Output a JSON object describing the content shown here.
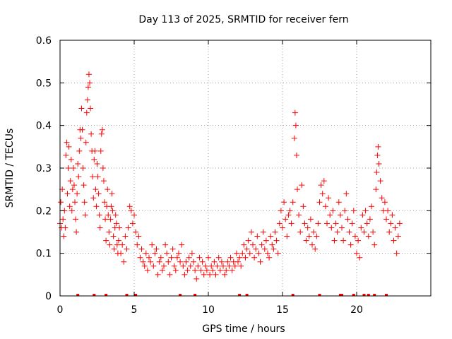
{
  "chart_data": {
    "type": "scatter",
    "title": "Day 113 of 2025, SRMTID for receiver fern",
    "xlabel": "GPS time / hours",
    "ylabel": "SRMTID / TECUs",
    "xlim": [
      0,
      25
    ],
    "ylim": [
      0,
      0.6
    ],
    "xticks": [
      0,
      5,
      10,
      15,
      20
    ],
    "xtick_labels": [
      "0",
      "5",
      "10",
      "15",
      "20"
    ],
    "yticks": [
      0,
      0.1,
      0.2,
      0.3,
      0.4,
      0.5,
      0.6
    ],
    "ytick_labels": [
      "0",
      "0.1",
      "0.2",
      "0.3",
      "0.4",
      "0.5",
      "0.6"
    ],
    "grid": true,
    "marker": "+",
    "color": "#ff0000",
    "series": [
      {
        "name": "SRMTID",
        "points": [
          [
            0.0,
            0.17
          ],
          [
            0.05,
            0.22
          ],
          [
            0.1,
            0.16
          ],
          [
            0.15,
            0.25
          ],
          [
            0.2,
            0.18
          ],
          [
            0.25,
            0.14
          ],
          [
            0.3,
            0.2
          ],
          [
            0.35,
            0.16
          ],
          [
            0.4,
            0.33
          ],
          [
            0.45,
            0.36
          ],
          [
            0.5,
            0.24
          ],
          [
            0.55,
            0.3
          ],
          [
            0.6,
            0.35
          ],
          [
            0.65,
            0.21
          ],
          [
            0.7,
            0.27
          ],
          [
            0.75,
            0.32
          ],
          [
            0.8,
            0.2
          ],
          [
            0.85,
            0.25
          ],
          [
            0.9,
            0.3
          ],
          [
            0.95,
            0.26
          ],
          [
            1.0,
            0.22
          ],
          [
            1.05,
            0.18
          ],
          [
            1.1,
            0.15
          ],
          [
            1.15,
            0.24
          ],
          [
            1.2,
            0.31
          ],
          [
            1.25,
            0.28
          ],
          [
            1.3,
            0.34
          ],
          [
            1.35,
            0.39
          ],
          [
            1.4,
            0.37
          ],
          [
            1.45,
            0.44
          ],
          [
            1.5,
            0.39
          ],
          [
            1.55,
            0.3
          ],
          [
            1.6,
            0.26
          ],
          [
            1.65,
            0.22
          ],
          [
            1.7,
            0.19
          ],
          [
            1.75,
            0.36
          ],
          [
            1.8,
            0.43
          ],
          [
            1.85,
            0.46
          ],
          [
            1.9,
            0.49
          ],
          [
            1.95,
            0.52
          ],
          [
            2.0,
            0.5
          ],
          [
            2.05,
            0.44
          ],
          [
            2.1,
            0.38
          ],
          [
            2.15,
            0.34
          ],
          [
            2.2,
            0.28
          ],
          [
            2.25,
            0.23
          ],
          [
            2.3,
            0.32
          ],
          [
            2.35,
            0.34
          ],
          [
            2.4,
            0.25
          ],
          [
            2.45,
            0.21
          ],
          [
            2.5,
            0.31
          ],
          [
            2.55,
            0.28
          ],
          [
            2.6,
            0.24
          ],
          [
            2.65,
            0.19
          ],
          [
            2.7,
            0.16
          ],
          [
            2.75,
            0.34
          ],
          [
            2.8,
            0.38
          ],
          [
            2.85,
            0.39
          ],
          [
            2.9,
            0.3
          ],
          [
            2.95,
            0.27
          ],
          [
            3.0,
            0.22
          ],
          [
            3.05,
            0.18
          ],
          [
            3.1,
            0.13
          ],
          [
            3.15,
            0.21
          ],
          [
            3.2,
            0.25
          ],
          [
            3.25,
            0.19
          ],
          [
            3.3,
            0.15
          ],
          [
            3.35,
            0.12
          ],
          [
            3.4,
            0.18
          ],
          [
            3.45,
            0.21
          ],
          [
            3.5,
            0.24
          ],
          [
            3.55,
            0.2
          ],
          [
            3.6,
            0.14
          ],
          [
            3.65,
            0.11
          ],
          [
            3.7,
            0.16
          ],
          [
            3.75,
            0.19
          ],
          [
            3.8,
            0.17
          ],
          [
            3.85,
            0.12
          ],
          [
            3.9,
            0.1
          ],
          [
            3.95,
            0.13
          ],
          [
            4.0,
            0.16
          ],
          [
            4.1,
            0.1
          ],
          [
            4.2,
            0.12
          ],
          [
            4.3,
            0.08
          ],
          [
            4.4,
            0.14
          ],
          [
            4.5,
            0.11
          ],
          [
            4.6,
            0.16
          ],
          [
            4.7,
            0.21
          ],
          [
            4.8,
            0.2
          ],
          [
            4.9,
            0.17
          ],
          [
            5.0,
            0.19
          ],
          [
            5.1,
            0.15
          ],
          [
            5.2,
            0.12
          ],
          [
            5.3,
            0.14
          ],
          [
            5.4,
            0.09
          ],
          [
            5.5,
            0.11
          ],
          [
            5.6,
            0.08
          ],
          [
            5.7,
            0.07
          ],
          [
            5.8,
            0.1
          ],
          [
            5.9,
            0.06
          ],
          [
            6.0,
            0.09
          ],
          [
            6.1,
            0.08
          ],
          [
            6.2,
            0.12
          ],
          [
            6.3,
            0.07
          ],
          [
            6.4,
            0.1
          ],
          [
            6.5,
            0.11
          ],
          [
            6.6,
            0.05
          ],
          [
            6.7,
            0.08
          ],
          [
            6.8,
            0.09
          ],
          [
            6.9,
            0.06
          ],
          [
            7.0,
            0.07
          ],
          [
            7.1,
            0.12
          ],
          [
            7.2,
            0.1
          ],
          [
            7.3,
            0.08
          ],
          [
            7.4,
            0.05
          ],
          [
            7.5,
            0.09
          ],
          [
            7.6,
            0.11
          ],
          [
            7.7,
            0.07
          ],
          [
            7.8,
            0.06
          ],
          [
            7.9,
            0.09
          ],
          [
            8.0,
            0.1
          ],
          [
            8.1,
            0.08
          ],
          [
            8.2,
            0.12
          ],
          [
            8.3,
            0.07
          ],
          [
            8.4,
            0.05
          ],
          [
            8.5,
            0.08
          ],
          [
            8.6,
            0.06
          ],
          [
            8.7,
            0.09
          ],
          [
            8.8,
            0.07
          ],
          [
            8.9,
            0.1
          ],
          [
            9.0,
            0.08
          ],
          [
            9.1,
            0.06
          ],
          [
            9.2,
            0.04
          ],
          [
            9.3,
            0.07
          ],
          [
            9.4,
            0.09
          ],
          [
            9.5,
            0.06
          ],
          [
            9.6,
            0.08
          ],
          [
            9.7,
            0.05
          ],
          [
            9.8,
            0.07
          ],
          [
            9.9,
            0.06
          ],
          [
            10.0,
            0.09
          ],
          [
            10.1,
            0.05
          ],
          [
            10.2,
            0.07
          ],
          [
            10.3,
            0.06
          ],
          [
            10.4,
            0.08
          ],
          [
            10.5,
            0.05
          ],
          [
            10.6,
            0.07
          ],
          [
            10.7,
            0.09
          ],
          [
            10.8,
            0.06
          ],
          [
            10.9,
            0.08
          ],
          [
            11.0,
            0.07
          ],
          [
            11.1,
            0.05
          ],
          [
            11.2,
            0.06
          ],
          [
            11.3,
            0.08
          ],
          [
            11.4,
            0.07
          ],
          [
            11.5,
            0.09
          ],
          [
            11.6,
            0.06
          ],
          [
            11.7,
            0.08
          ],
          [
            11.8,
            0.07
          ],
          [
            11.9,
            0.1
          ],
          [
            12.0,
            0.08
          ],
          [
            12.1,
            0.09
          ],
          [
            12.2,
            0.07
          ],
          [
            12.3,
            0.1
          ],
          [
            12.4,
            0.12
          ],
          [
            12.5,
            0.09
          ],
          [
            12.6,
            0.11
          ],
          [
            12.7,
            0.13
          ],
          [
            12.8,
            0.1
          ],
          [
            12.9,
            0.15
          ],
          [
            13.0,
            0.12
          ],
          [
            13.1,
            0.09
          ],
          [
            13.2,
            0.11
          ],
          [
            13.3,
            0.14
          ],
          [
            13.4,
            0.1
          ],
          [
            13.5,
            0.08
          ],
          [
            13.6,
            0.12
          ],
          [
            13.7,
            0.15
          ],
          [
            13.8,
            0.11
          ],
          [
            13.9,
            0.13
          ],
          [
            14.0,
            0.1
          ],
          [
            14.1,
            0.09
          ],
          [
            14.2,
            0.14
          ],
          [
            14.3,
            0.12
          ],
          [
            14.4,
            0.11
          ],
          [
            14.5,
            0.15
          ],
          [
            14.6,
            0.13
          ],
          [
            14.7,
            0.1
          ],
          [
            14.8,
            0.17
          ],
          [
            14.9,
            0.2
          ],
          [
            15.0,
            0.16
          ],
          [
            15.1,
            0.22
          ],
          [
            15.2,
            0.18
          ],
          [
            15.3,
            0.14
          ],
          [
            15.4,
            0.19
          ],
          [
            15.5,
            0.2
          ],
          [
            15.6,
            0.17
          ],
          [
            15.7,
            0.22
          ],
          [
            15.8,
            0.37
          ],
          [
            15.85,
            0.43
          ],
          [
            15.9,
            0.4
          ],
          [
            15.95,
            0.33
          ],
          [
            16.0,
            0.25
          ],
          [
            16.1,
            0.19
          ],
          [
            16.2,
            0.15
          ],
          [
            16.3,
            0.26
          ],
          [
            16.4,
            0.21
          ],
          [
            16.5,
            0.17
          ],
          [
            16.6,
            0.13
          ],
          [
            16.7,
            0.16
          ],
          [
            16.8,
            0.14
          ],
          [
            16.9,
            0.18
          ],
          [
            17.0,
            0.12
          ],
          [
            17.1,
            0.15
          ],
          [
            17.2,
            0.11
          ],
          [
            17.3,
            0.14
          ],
          [
            17.4,
            0.17
          ],
          [
            17.5,
            0.22
          ],
          [
            17.6,
            0.26
          ],
          [
            17.7,
            0.24
          ],
          [
            17.8,
            0.27
          ],
          [
            17.9,
            0.21
          ],
          [
            18.0,
            0.17
          ],
          [
            18.1,
            0.23
          ],
          [
            18.2,
            0.19
          ],
          [
            18.3,
            0.16
          ],
          [
            18.4,
            0.2
          ],
          [
            18.5,
            0.13
          ],
          [
            18.6,
            0.17
          ],
          [
            18.7,
            0.15
          ],
          [
            18.8,
            0.22
          ],
          [
            18.9,
            0.19
          ],
          [
            19.0,
            0.16
          ],
          [
            19.1,
            0.13
          ],
          [
            19.2,
            0.2
          ],
          [
            19.3,
            0.24
          ],
          [
            19.4,
            0.18
          ],
          [
            19.5,
            0.15
          ],
          [
            19.6,
            0.12
          ],
          [
            19.7,
            0.17
          ],
          [
            19.8,
            0.2
          ],
          [
            19.9,
            0.14
          ],
          [
            20.0,
            0.1
          ],
          [
            20.1,
            0.13
          ],
          [
            20.2,
            0.09
          ],
          [
            20.3,
            0.16
          ],
          [
            20.4,
            0.19
          ],
          [
            20.5,
            0.15
          ],
          [
            20.6,
            0.2
          ],
          [
            20.7,
            0.17
          ],
          [
            20.8,
            0.14
          ],
          [
            20.9,
            0.18
          ],
          [
            21.0,
            0.21
          ],
          [
            21.1,
            0.15
          ],
          [
            21.2,
            0.12
          ],
          [
            21.3,
            0.25
          ],
          [
            21.35,
            0.29
          ],
          [
            21.4,
            0.33
          ],
          [
            21.45,
            0.35
          ],
          [
            21.5,
            0.31
          ],
          [
            21.6,
            0.27
          ],
          [
            21.7,
            0.23
          ],
          [
            21.8,
            0.2
          ],
          [
            21.9,
            0.22
          ],
          [
            22.0,
            0.18
          ],
          [
            22.1,
            0.2
          ],
          [
            22.2,
            0.15
          ],
          [
            22.3,
            0.17
          ],
          [
            22.4,
            0.19
          ],
          [
            22.5,
            0.13
          ],
          [
            22.6,
            0.16
          ],
          [
            22.7,
            0.1
          ],
          [
            22.8,
            0.14
          ],
          [
            22.9,
            0.17
          ]
        ]
      }
    ],
    "baseline_markers": [
      1.2,
      2.3,
      3.1,
      4.5,
      5.1,
      8.1,
      9.1,
      12.1,
      12.6,
      15.7,
      17.5,
      18.9,
      19.0,
      19.8,
      20.5,
      20.8,
      21.2,
      22.0
    ]
  }
}
